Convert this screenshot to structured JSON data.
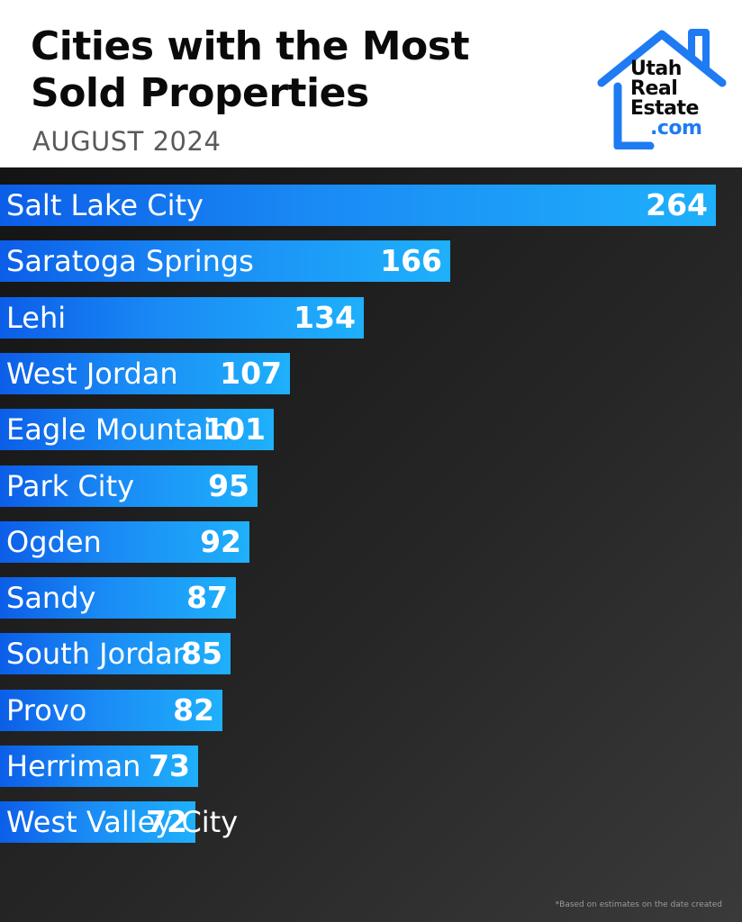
{
  "title_line1": "Cities with the Most",
  "title_line2": "Sold Properties",
  "subtitle": "AUGUST 2024",
  "logo": {
    "line1": "Utah",
    "line2": "Real",
    "line3": "Estate",
    "line4": ".com",
    "color": "#1e7bf2"
  },
  "footnote": "*Based on estimates on the date created",
  "chart_data": {
    "type": "bar",
    "orientation": "horizontal",
    "title": "Cities with the Most Sold Properties",
    "subtitle": "AUGUST 2024",
    "categories": [
      "Salt Lake City",
      "Saratoga Springs",
      "Lehi",
      "West Jordan",
      "Eagle Mountain",
      "Park City",
      "Ogden",
      "Sandy",
      "South Jordan",
      "Provo",
      "Herriman",
      "West Valley City"
    ],
    "values": [
      264,
      166,
      134,
      107,
      101,
      95,
      92,
      87,
      85,
      82,
      73,
      72
    ],
    "xlabel": "",
    "ylabel": "",
    "grid": false,
    "data_labels": true,
    "bar_color": "#1a8bf5",
    "background_color": "#1f1f1f"
  }
}
